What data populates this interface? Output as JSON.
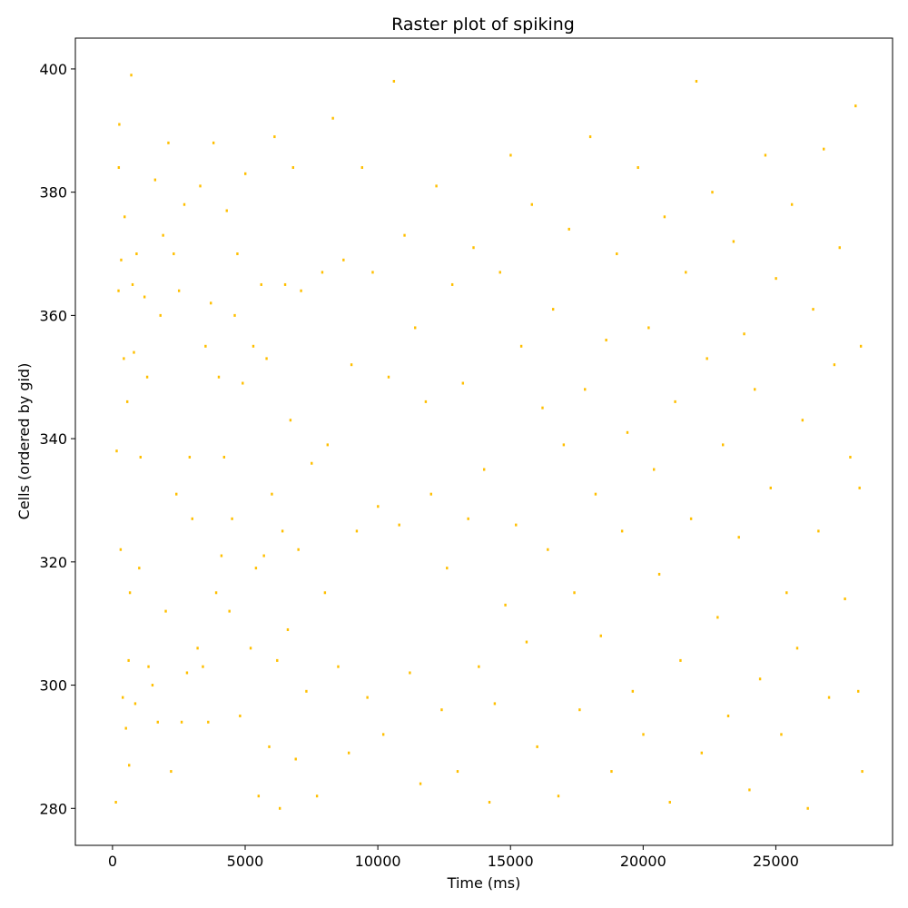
{
  "chart_data": {
    "type": "scatter",
    "title": "Raster plot of spiking",
    "xlabel": "Time (ms)",
    "ylabel": "Cells (ordered by gid)",
    "xlim": [
      -1400,
      29400
    ],
    "ylim": [
      274,
      405
    ],
    "xticks": [
      0,
      5000,
      10000,
      15000,
      20000,
      25000
    ],
    "xtick_labels": [
      "0",
      "5000",
      "10000",
      "15000",
      "20000",
      "25000"
    ],
    "yticks": [
      280,
      300,
      320,
      340,
      360,
      380,
      400
    ],
    "ytick_labels": [
      "280",
      "300",
      "320",
      "340",
      "360",
      "380",
      "400"
    ],
    "grid": false,
    "legend": "none",
    "marker_color": "#ffbf00",
    "series": [
      {
        "points": [
          [
            120,
            281
          ],
          [
            150,
            338
          ],
          [
            220,
            364
          ],
          [
            230,
            384
          ],
          [
            250,
            391
          ],
          [
            300,
            322
          ],
          [
            320,
            369
          ],
          [
            380,
            298
          ],
          [
            420,
            353
          ],
          [
            450,
            376
          ],
          [
            500,
            293
          ],
          [
            550,
            346
          ],
          [
            600,
            304
          ],
          [
            620,
            287
          ],
          [
            650,
            315
          ],
          [
            700,
            399
          ],
          [
            750,
            365
          ],
          [
            800,
            354
          ],
          [
            850,
            297
          ],
          [
            900,
            370
          ],
          [
            1000,
            319
          ],
          [
            1050,
            337
          ],
          [
            1200,
            363
          ],
          [
            1300,
            350
          ],
          [
            1350,
            303
          ],
          [
            1500,
            300
          ],
          [
            1600,
            382
          ],
          [
            1700,
            294
          ],
          [
            1800,
            360
          ],
          [
            1900,
            373
          ],
          [
            2000,
            312
          ],
          [
            2100,
            388
          ],
          [
            2200,
            286
          ],
          [
            2300,
            370
          ],
          [
            2400,
            331
          ],
          [
            2500,
            364
          ],
          [
            2600,
            294
          ],
          [
            2700,
            378
          ],
          [
            2800,
            302
          ],
          [
            2900,
            337
          ],
          [
            3000,
            327
          ],
          [
            3200,
            306
          ],
          [
            3300,
            381
          ],
          [
            3400,
            303
          ],
          [
            3500,
            355
          ],
          [
            3600,
            294
          ],
          [
            3700,
            362
          ],
          [
            3800,
            388
          ],
          [
            3900,
            315
          ],
          [
            4000,
            350
          ],
          [
            4100,
            321
          ],
          [
            4200,
            337
          ],
          [
            4300,
            377
          ],
          [
            4400,
            312
          ],
          [
            4500,
            327
          ],
          [
            4600,
            360
          ],
          [
            4700,
            370
          ],
          [
            4800,
            295
          ],
          [
            4900,
            349
          ],
          [
            5000,
            383
          ],
          [
            5200,
            306
          ],
          [
            5300,
            355
          ],
          [
            5400,
            319
          ],
          [
            5500,
            282
          ],
          [
            5600,
            365
          ],
          [
            5700,
            321
          ],
          [
            5800,
            353
          ],
          [
            5900,
            290
          ],
          [
            6000,
            331
          ],
          [
            6100,
            389
          ],
          [
            6200,
            304
          ],
          [
            6300,
            280
          ],
          [
            6400,
            325
          ],
          [
            6500,
            365
          ],
          [
            6600,
            309
          ],
          [
            6700,
            343
          ],
          [
            6800,
            384
          ],
          [
            6900,
            288
          ],
          [
            7000,
            322
          ],
          [
            7100,
            364
          ],
          [
            7300,
            299
          ],
          [
            7500,
            336
          ],
          [
            7700,
            282
          ],
          [
            7900,
            367
          ],
          [
            8000,
            315
          ],
          [
            8100,
            339
          ],
          [
            8300,
            392
          ],
          [
            8500,
            303
          ],
          [
            8700,
            369
          ],
          [
            8900,
            289
          ],
          [
            9000,
            352
          ],
          [
            9200,
            325
          ],
          [
            9400,
            384
          ],
          [
            9600,
            298
          ],
          [
            9800,
            367
          ],
          [
            10000,
            329
          ],
          [
            10200,
            292
          ],
          [
            10400,
            350
          ],
          [
            10600,
            398
          ],
          [
            10800,
            326
          ],
          [
            11000,
            373
          ],
          [
            11200,
            302
          ],
          [
            11400,
            358
          ],
          [
            11600,
            284
          ],
          [
            11800,
            346
          ],
          [
            12000,
            331
          ],
          [
            12200,
            381
          ],
          [
            12400,
            296
          ],
          [
            12600,
            319
          ],
          [
            12800,
            365
          ],
          [
            13000,
            286
          ],
          [
            13200,
            349
          ],
          [
            13400,
            327
          ],
          [
            13600,
            371
          ],
          [
            13800,
            303
          ],
          [
            14000,
            335
          ],
          [
            14200,
            281
          ],
          [
            14400,
            297
          ],
          [
            14600,
            367
          ],
          [
            14800,
            313
          ],
          [
            15000,
            386
          ],
          [
            15200,
            326
          ],
          [
            15400,
            355
          ],
          [
            15600,
            307
          ],
          [
            15800,
            378
          ],
          [
            16000,
            290
          ],
          [
            16200,
            345
          ],
          [
            16400,
            322
          ],
          [
            16600,
            361
          ],
          [
            16800,
            282
          ],
          [
            17000,
            339
          ],
          [
            17200,
            374
          ],
          [
            17400,
            315
          ],
          [
            17600,
            296
          ],
          [
            17800,
            348
          ],
          [
            18000,
            389
          ],
          [
            18200,
            331
          ],
          [
            18400,
            308
          ],
          [
            18600,
            356
          ],
          [
            18800,
            286
          ],
          [
            19000,
            370
          ],
          [
            19200,
            325
          ],
          [
            19400,
            341
          ],
          [
            19600,
            299
          ],
          [
            19800,
            384
          ],
          [
            20000,
            292
          ],
          [
            20200,
            358
          ],
          [
            20400,
            335
          ],
          [
            20600,
            318
          ],
          [
            20800,
            376
          ],
          [
            21000,
            281
          ],
          [
            21200,
            346
          ],
          [
            21400,
            304
          ],
          [
            21600,
            367
          ],
          [
            21800,
            327
          ],
          [
            22000,
            398
          ],
          [
            22200,
            289
          ],
          [
            22400,
            353
          ],
          [
            22600,
            380
          ],
          [
            22800,
            311
          ],
          [
            23000,
            339
          ],
          [
            23200,
            295
          ],
          [
            23400,
            372
          ],
          [
            23600,
            324
          ],
          [
            23800,
            357
          ],
          [
            24000,
            283
          ],
          [
            24200,
            348
          ],
          [
            24400,
            301
          ],
          [
            24600,
            386
          ],
          [
            24800,
            332
          ],
          [
            25000,
            366
          ],
          [
            25200,
            292
          ],
          [
            25400,
            315
          ],
          [
            25600,
            378
          ],
          [
            25800,
            306
          ],
          [
            26000,
            343
          ],
          [
            26200,
            280
          ],
          [
            26400,
            361
          ],
          [
            26600,
            325
          ],
          [
            26800,
            387
          ],
          [
            27000,
            298
          ],
          [
            27200,
            352
          ],
          [
            27400,
            371
          ],
          [
            27600,
            314
          ],
          [
            27800,
            337
          ],
          [
            28000,
            394
          ],
          [
            28100,
            299
          ],
          [
            28150,
            332
          ],
          [
            28200,
            355
          ],
          [
            28250,
            286
          ]
        ]
      }
    ]
  }
}
